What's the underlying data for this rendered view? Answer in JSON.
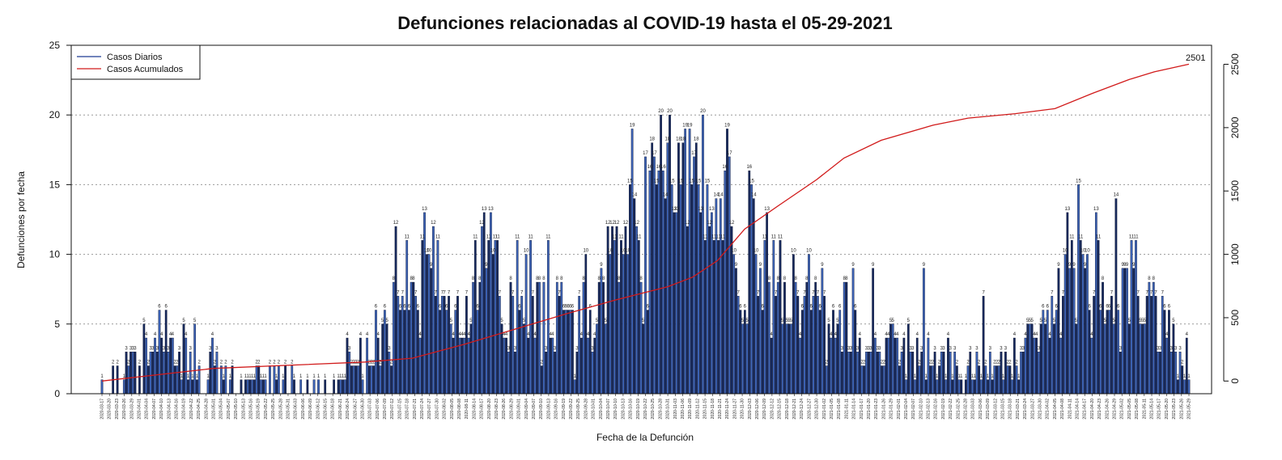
{
  "chart_data": {
    "type": "bar",
    "title": "Defunciones relacionadas al COVID-19 hasta el 05-29-2021",
    "xlabel": "Fecha de la Defunción",
    "ylabel": "Defunciones por fecha",
    "ylim": [
      0,
      25
    ],
    "y_ticks": [
      0,
      5,
      10,
      15,
      20,
      25
    ],
    "y2lim": [
      -100,
      2650
    ],
    "y2_ticks": [
      0,
      500,
      1000,
      1500,
      2000,
      2500
    ],
    "grid": "horizontal-dotted",
    "legend_position": "top-left",
    "x_start": "2020-03-17",
    "x_end": "2021-05-29",
    "date_tick_labels": [
      "2020-03-17",
      "2020-03-20",
      "2020-03-23",
      "2020-03-26",
      "2020-03-29",
      "2020-04-01",
      "2020-04-04",
      "2020-04-07",
      "2020-04-10",
      "2020-04-13",
      "2020-04-16",
      "2020-04-19",
      "2020-04-22",
      "2020-04-25",
      "2020-04-28",
      "2020-05-01",
      "2020-05-04",
      "2020-05-07",
      "2020-05-10",
      "2020-05-13",
      "2020-05-16",
      "2020-05-19",
      "2020-05-22",
      "2020-05-25",
      "2020-05-28",
      "2020-05-31",
      "2020-06-03",
      "2020-06-06",
      "2020-06-09",
      "2020-06-12",
      "2020-06-15",
      "2020-06-18",
      "2020-06-21",
      "2020-06-24",
      "2020-06-27",
      "2020-06-30",
      "2020-07-03",
      "2020-07-06",
      "2020-07-09",
      "2020-07-12",
      "2020-07-15",
      "2020-07-18",
      "2020-07-21",
      "2020-07-24",
      "2020-07-27",
      "2020-07-30",
      "2020-08-02",
      "2020-08-05",
      "2020-08-08",
      "2020-08-11",
      "2020-08-14",
      "2020-08-17",
      "2020-08-20",
      "2020-08-23",
      "2020-08-26",
      "2020-08-29",
      "2020-09-01",
      "2020-09-04",
      "2020-09-07",
      "2020-09-10",
      "2020-09-13",
      "2020-09-16",
      "2020-09-19",
      "2020-09-22",
      "2020-09-25",
      "2020-09-28",
      "2020-10-01",
      "2020-10-04",
      "2020-10-07",
      "2020-10-10",
      "2020-10-13",
      "2020-10-16",
      "2020-10-19",
      "2020-10-22",
      "2020-10-25",
      "2020-10-28",
      "2020-10-31",
      "2020-11-03",
      "2020-11-06",
      "2020-11-09",
      "2020-11-12",
      "2020-11-15",
      "2020-11-18",
      "2020-11-21",
      "2020-11-24",
      "2020-11-27",
      "2020-11-30",
      "2020-12-03",
      "2020-12-06",
      "2020-12-09",
      "2020-12-12",
      "2020-12-15",
      "2020-12-18",
      "2020-12-21",
      "2020-12-24",
      "2020-12-27",
      "2020-12-30",
      "2021-01-02",
      "2021-01-05",
      "2021-01-08",
      "2021-01-11",
      "2021-01-14",
      "2021-01-17",
      "2021-01-20",
      "2021-01-23",
      "2021-01-26",
      "2021-01-29",
      "2021-02-01",
      "2021-02-04",
      "2021-02-07",
      "2021-02-10",
      "2021-02-13",
      "2021-02-16",
      "2021-02-19",
      "2021-02-22",
      "2021-02-25",
      "2021-02-28",
      "2021-03-03",
      "2021-03-06",
      "2021-03-09",
      "2021-03-12",
      "2021-03-15",
      "2021-03-18",
      "2021-03-21",
      "2021-03-24",
      "2021-03-27",
      "2021-03-30",
      "2021-04-02",
      "2021-04-05",
      "2021-04-08",
      "2021-04-11",
      "2021-04-14",
      "2021-04-17",
      "2021-04-20",
      "2021-04-23",
      "2021-04-26",
      "2021-04-29",
      "2021-05-02",
      "2021-05-05",
      "2021-05-08",
      "2021-05-11",
      "2021-05-14",
      "2021-05-17",
      "2021-05-20",
      "2021-05-23",
      "2021-05-26",
      "2021-05-29"
    ],
    "daily_values": [
      1,
      0,
      0,
      0,
      0,
      2,
      0,
      2,
      0,
      0,
      1,
      3,
      2,
      3,
      3,
      3,
      0,
      2,
      0,
      5,
      4,
      2,
      3,
      3,
      4,
      3,
      6,
      4,
      3,
      6,
      3,
      4,
      4,
      2,
      2,
      3,
      1,
      5,
      4,
      1,
      3,
      1,
      5,
      1,
      2,
      0,
      0,
      0,
      1,
      3,
      4,
      2,
      3,
      0,
      2,
      1,
      2,
      0,
      1,
      2,
      0,
      0,
      0,
      1,
      0,
      1,
      1,
      1,
      1,
      1,
      2,
      2,
      1,
      1,
      1,
      0,
      2,
      0,
      2,
      1,
      2,
      0,
      1,
      2,
      0,
      0,
      2,
      1,
      0,
      0,
      1,
      0,
      0,
      1,
      0,
      0,
      1,
      0,
      1,
      0,
      0,
      1,
      0,
      0,
      0,
      1,
      0,
      1,
      1,
      1,
      1,
      4,
      3,
      2,
      2,
      2,
      2,
      4,
      1,
      0,
      4,
      2,
      2,
      2,
      6,
      4,
      2,
      5,
      6,
      5,
      3,
      2,
      8,
      12,
      7,
      6,
      7,
      6,
      11,
      6,
      8,
      8,
      7,
      6,
      4,
      11,
      13,
      10,
      10,
      9,
      12,
      7,
      11,
      6,
      7,
      7,
      6,
      7,
      5,
      4,
      6,
      7,
      4,
      4,
      4,
      7,
      4,
      5,
      8,
      11,
      6,
      8,
      12,
      13,
      9,
      11,
      13,
      10,
      11,
      11,
      7,
      5,
      4,
      4,
      3,
      8,
      7,
      3,
      11,
      6,
      7,
      5,
      10,
      4,
      11,
      7,
      4,
      8,
      8,
      2,
      8,
      3,
      11,
      4,
      4,
      3,
      8,
      7,
      8,
      6,
      6,
      6,
      6,
      6,
      1,
      3,
      7,
      4,
      8,
      10,
      4,
      6,
      3,
      4,
      5,
      8,
      9,
      8,
      5,
      12,
      10,
      12,
      11,
      12,
      8,
      11,
      10,
      12,
      10,
      15,
      19,
      14,
      12,
      11,
      8,
      5,
      17,
      6,
      16,
      18,
      17,
      15,
      16,
      20,
      16,
      14,
      18,
      20,
      15,
      13,
      13,
      18,
      15,
      18,
      19,
      12,
      19,
      15,
      17,
      18,
      15,
      13,
      20,
      11,
      15,
      12,
      13,
      11,
      14,
      11,
      14,
      11,
      16,
      19,
      17,
      12,
      10,
      9,
      7,
      6,
      5,
      6,
      5,
      16,
      15,
      14,
      10,
      7,
      9,
      6,
      11,
      13,
      8,
      4,
      11,
      7,
      8,
      11,
      5,
      8,
      5,
      5,
      5,
      10,
      8,
      7,
      4,
      6,
      7,
      8,
      10,
      6,
      7,
      8,
      7,
      6,
      9,
      7,
      2,
      5,
      4,
      6,
      4,
      5,
      6,
      3,
      8,
      8,
      3,
      3,
      9,
      6,
      3,
      4,
      2,
      2,
      3,
      3,
      3,
      9,
      4,
      3,
      3,
      2,
      2,
      4,
      4,
      5,
      5,
      4,
      4,
      2,
      3,
      4,
      1,
      5,
      3,
      3,
      1,
      4,
      2,
      3,
      9,
      1,
      4,
      2,
      2,
      3,
      1,
      2,
      3,
      3,
      1,
      4,
      3,
      1,
      3,
      2,
      1,
      1,
      0,
      1,
      2,
      3,
      1,
      1,
      3,
      2,
      1,
      7,
      2,
      1,
      3,
      1,
      2,
      2,
      2,
      3,
      1,
      3,
      2,
      2,
      1,
      4,
      2,
      1,
      3,
      3,
      4,
      5,
      5,
      5,
      4,
      4,
      3,
      5,
      6,
      5,
      6,
      4,
      7,
      5,
      6,
      9,
      4,
      7,
      10,
      13,
      9,
      11,
      9,
      5,
      15,
      11,
      10,
      9,
      10,
      6,
      4,
      7,
      13,
      11,
      6,
      8,
      5,
      6,
      6,
      7,
      5,
      14,
      6,
      3,
      9,
      9,
      9,
      5,
      11,
      9,
      11,
      7,
      5,
      5,
      5,
      7,
      8,
      7,
      8,
      7,
      3,
      3,
      7,
      6,
      4,
      6,
      3,
      5,
      3,
      1,
      3,
      2,
      1,
      4,
      1
    ],
    "series": [
      {
        "name": "Casos Diarios",
        "color": "#1f3a93"
      },
      {
        "name": "Casos Acumulados",
        "color": "#d11a1a"
      }
    ],
    "cumulative_end_label": "2501",
    "cumulative_anchors": [
      [
        "2020-03-17",
        0
      ],
      [
        "2020-05-01",
        100
      ],
      [
        "2020-07-01",
        150
      ],
      [
        "2020-07-20",
        180
      ],
      [
        "2020-08-10",
        290
      ],
      [
        "2020-08-28",
        395
      ],
      [
        "2020-09-20",
        530
      ],
      [
        "2020-10-10",
        640
      ],
      [
        "2020-10-31",
        745
      ],
      [
        "2020-11-10",
        820
      ],
      [
        "2020-11-20",
        950
      ],
      [
        "2020-12-01",
        1200
      ],
      [
        "2020-12-15",
        1390
      ],
      [
        "2020-12-30",
        1590
      ],
      [
        "2021-01-10",
        1760
      ],
      [
        "2021-01-25",
        1900
      ],
      [
        "2021-02-15",
        2020
      ],
      [
        "2021-03-01",
        2075
      ],
      [
        "2021-03-20",
        2110
      ],
      [
        "2021-04-05",
        2150
      ],
      [
        "2021-04-20",
        2270
      ],
      [
        "2021-05-05",
        2380
      ],
      [
        "2021-05-15",
        2440
      ],
      [
        "2021-05-29",
        2501
      ]
    ]
  }
}
